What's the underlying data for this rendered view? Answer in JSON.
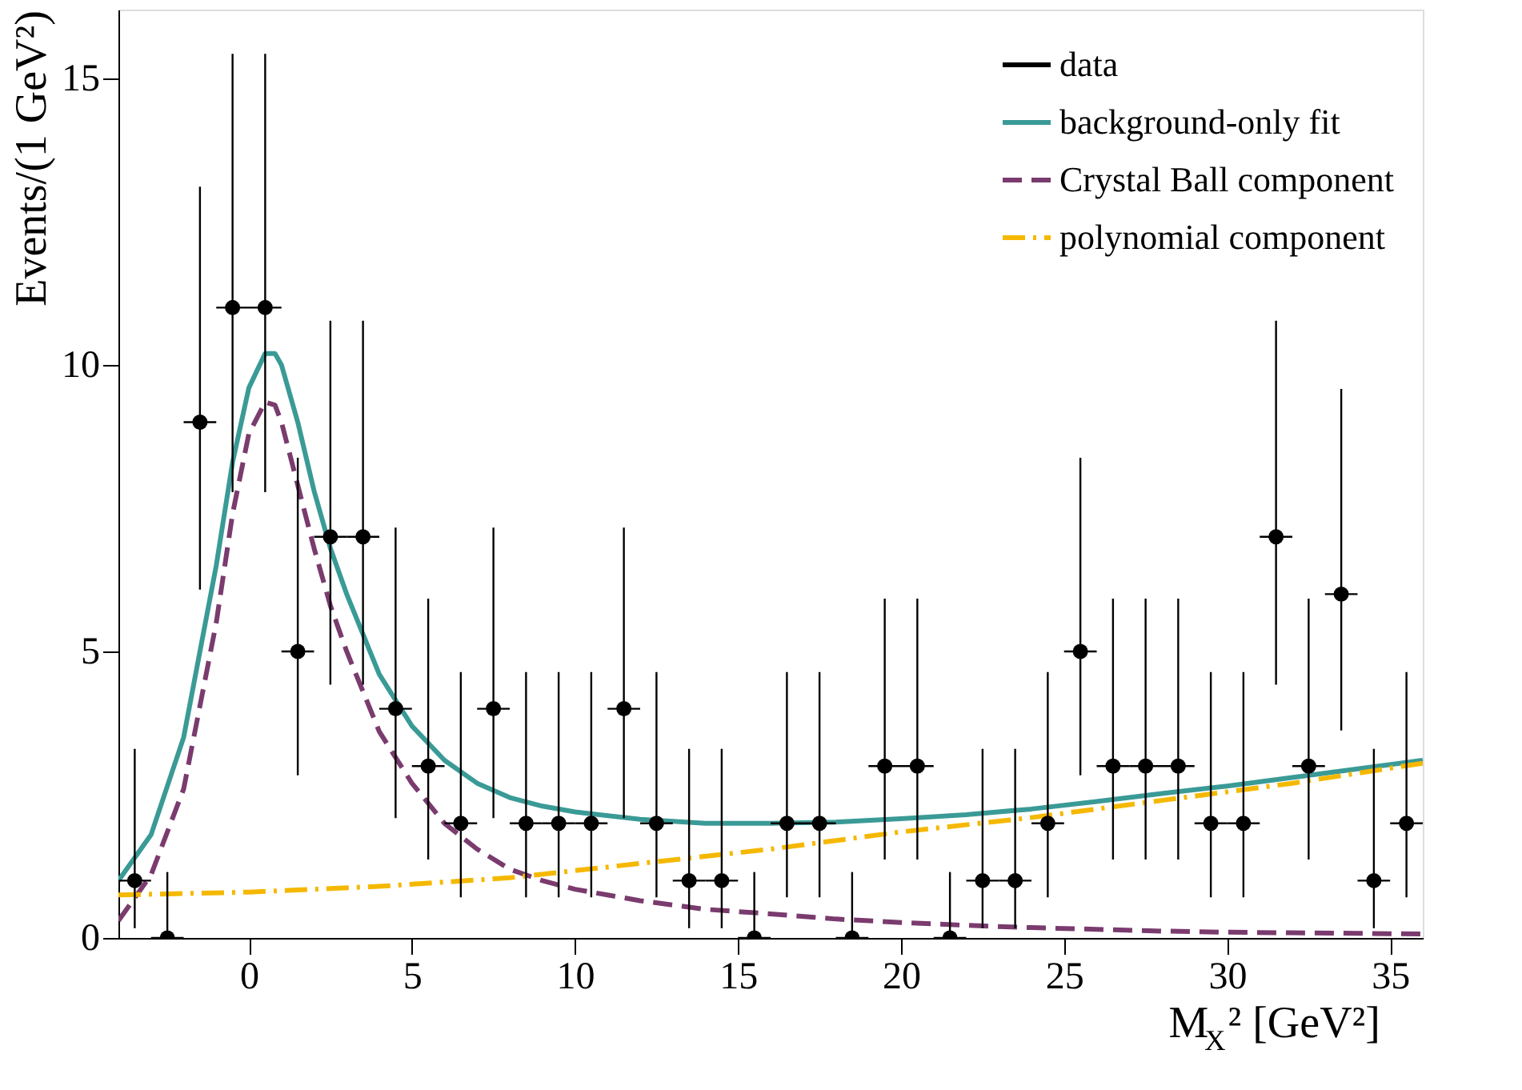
{
  "chart_data": {
    "type": "scatter",
    "xlabel": "M$_{X}$² [GeV²]",
    "ylabel": "Events/(1 GeV²)",
    "xlim": [
      -4,
      36
    ],
    "ylim": [
      0,
      16.2
    ],
    "xticks": [
      0,
      5,
      10,
      15,
      20,
      25,
      30,
      35
    ],
    "yticks": [
      0,
      5,
      10,
      15
    ],
    "grid": false,
    "legend": "top right",
    "series": [
      {
        "name": "data",
        "type": "scatter",
        "marker": "circle",
        "color": "#000000",
        "x": [
          -3.5,
          -2.5,
          -1.5,
          -0.5,
          0.5,
          1.5,
          2.5,
          3.5,
          4.5,
          5.5,
          6.5,
          7.5,
          8.5,
          9.5,
          10.5,
          11.5,
          12.5,
          13.5,
          14.5,
          15.5,
          16.5,
          17.5,
          18.5,
          19.5,
          20.5,
          21.5,
          22.5,
          23.5,
          24.5,
          25.5,
          26.5,
          27.5,
          28.5,
          29.5,
          30.5,
          31.5,
          32.5,
          33.5,
          34.5,
          35.5
        ],
        "values": [
          1,
          0,
          9,
          11,
          11,
          5,
          7,
          7,
          4,
          3,
          2,
          4,
          2,
          2,
          2,
          4,
          2,
          1,
          1,
          0,
          2,
          2,
          0,
          3,
          3,
          0,
          1,
          1,
          2,
          5,
          3,
          3,
          3,
          2,
          2,
          7,
          3,
          6,
          1,
          2
        ],
        "errors": [
          [
            0.17,
            3.3
          ],
          [
            0,
            1.15
          ],
          [
            6.08,
            13.11
          ],
          [
            7.78,
            15.43
          ],
          [
            7.78,
            15.43
          ],
          [
            2.84,
            8.38
          ],
          [
            4.42,
            10.77
          ],
          [
            4.42,
            10.77
          ],
          [
            2.09,
            7.16
          ],
          [
            1.37,
            5.92
          ],
          [
            0.71,
            4.64
          ],
          [
            2.09,
            7.16
          ],
          [
            0.71,
            4.64
          ],
          [
            0.71,
            4.64
          ],
          [
            0.71,
            4.64
          ],
          [
            2.09,
            7.16
          ],
          [
            0.71,
            4.64
          ],
          [
            0.17,
            3.3
          ],
          [
            0.17,
            3.3
          ],
          [
            0,
            1.15
          ],
          [
            0.71,
            4.64
          ],
          [
            0.71,
            4.64
          ],
          [
            0,
            1.15
          ],
          [
            1.37,
            5.92
          ],
          [
            1.37,
            5.92
          ],
          [
            0,
            1.15
          ],
          [
            0.17,
            3.3
          ],
          [
            0.17,
            3.3
          ],
          [
            0.71,
            4.64
          ],
          [
            2.84,
            8.38
          ],
          [
            1.37,
            5.92
          ],
          [
            1.37,
            5.92
          ],
          [
            1.37,
            5.92
          ],
          [
            0.71,
            4.64
          ],
          [
            0.71,
            4.64
          ],
          [
            4.42,
            10.77
          ],
          [
            1.37,
            5.92
          ],
          [
            3.62,
            9.58
          ],
          [
            0.17,
            3.3
          ],
          [
            0.71,
            4.64
          ]
        ],
        "xerrors": [
          0.5,
          0.5,
          0.5,
          0.5,
          0.5,
          0.5,
          0.5,
          0.5,
          0.5,
          0.5,
          0.5,
          0.5,
          0.5,
          0.5,
          0.5,
          0.5,
          0.5,
          0.5,
          0.5,
          0.5,
          0.5,
          0.5,
          0.5,
          0.5,
          0.5,
          0.5,
          0.5,
          0.5,
          0.5,
          0.5,
          0.5,
          0.5,
          0.5,
          0.5,
          0.5,
          0.5,
          0.5,
          0.5,
          0.5,
          0.5
        ]
      },
      {
        "name": "background-only fit",
        "type": "line",
        "line_style": "solid",
        "color": "#3a9a96",
        "x": [
          -4,
          -3,
          -2,
          -1,
          -0.5,
          0,
          0.5,
          0.8,
          1,
          1.5,
          2,
          2.5,
          3,
          4,
          5,
          6,
          7,
          8,
          9,
          10,
          12,
          14,
          16,
          18,
          20,
          22,
          24,
          26,
          28,
          30,
          32,
          34,
          36
        ],
        "values": [
          1.0,
          1.8,
          3.5,
          6.5,
          8.3,
          9.6,
          10.2,
          10.2,
          10.0,
          9.0,
          7.8,
          6.8,
          6.0,
          4.6,
          3.7,
          3.1,
          2.7,
          2.45,
          2.3,
          2.2,
          2.07,
          2.0,
          2.0,
          2.02,
          2.08,
          2.15,
          2.25,
          2.38,
          2.52,
          2.65,
          2.8,
          2.95,
          3.1
        ]
      },
      {
        "name": "Crystal Ball component",
        "type": "line",
        "line_style": "dashed",
        "color": "#7a3b6e",
        "x": [
          -4,
          -3,
          -2,
          -1,
          -0.5,
          0,
          0.5,
          0.8,
          1,
          1.5,
          2,
          2.5,
          3,
          4,
          5,
          6,
          7,
          8,
          9,
          10,
          12,
          14,
          16,
          18,
          20,
          22,
          24,
          26,
          28,
          30,
          32,
          34,
          36
        ],
        "values": [
          0.3,
          1.1,
          2.6,
          5.5,
          7.4,
          8.8,
          9.35,
          9.3,
          9.0,
          7.9,
          6.8,
          5.8,
          5.0,
          3.6,
          2.7,
          2.0,
          1.55,
          1.2,
          1.0,
          0.85,
          0.65,
          0.5,
          0.42,
          0.33,
          0.27,
          0.22,
          0.18,
          0.15,
          0.12,
          0.1,
          0.09,
          0.08,
          0.07
        ]
      },
      {
        "name": "polynomial component",
        "type": "line",
        "line_style": "dashdot",
        "color": "#f5b800",
        "x": [
          -4,
          0,
          4,
          8,
          12,
          16,
          20,
          24,
          28,
          30,
          32,
          36
        ],
        "values": [
          0.75,
          0.8,
          0.9,
          1.05,
          1.3,
          1.55,
          1.85,
          2.1,
          2.4,
          2.55,
          2.7,
          3.05
        ]
      }
    ]
  }
}
